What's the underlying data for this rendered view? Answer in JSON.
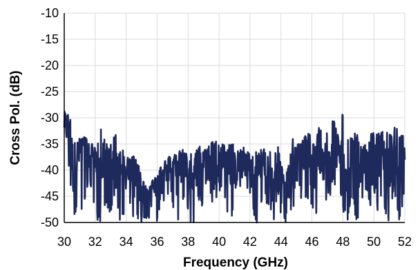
{
  "chart_data": {
    "type": "line",
    "title": "",
    "xlabel": "Frequency  (GHz)",
    "ylabel": "Cross Pol. (dB)",
    "xlim": [
      30,
      52
    ],
    "ylim": [
      -50,
      -10
    ],
    "xticks": [
      30,
      32,
      34,
      36,
      38,
      40,
      42,
      44,
      46,
      48,
      50,
      52
    ],
    "yticks": [
      -10,
      -15,
      -20,
      -25,
      -30,
      -35,
      -40,
      -45,
      -50
    ],
    "grid": true,
    "legend": "none",
    "series": [
      {
        "color": "#1f2a5c",
        "x": [
          30.0,
          30.3,
          30.6,
          30.9,
          31.2,
          31.5,
          31.8,
          32.1,
          32.4,
          32.7,
          33.0,
          33.3,
          33.6,
          33.9,
          34.2,
          34.5,
          34.8,
          35.1,
          35.4,
          35.7,
          36.0,
          36.3,
          36.6,
          36.9,
          37.2,
          37.5,
          37.8,
          38.1,
          38.4,
          38.7,
          39.0,
          39.3,
          39.6,
          39.9,
          40.2,
          40.5,
          40.8,
          41.1,
          41.4,
          41.7,
          42.0,
          42.3,
          42.6,
          42.9,
          43.2,
          43.5,
          43.8,
          44.1,
          44.4,
          44.7,
          45.0,
          45.3,
          45.6,
          45.9,
          46.2,
          46.5,
          46.8,
          47.1,
          47.4,
          47.7,
          48.0,
          48.3,
          48.6,
          48.9,
          49.2,
          49.5,
          49.8,
          50.1,
          50.4,
          50.7,
          51.0,
          51.3,
          51.6,
          51.9,
          52.0
        ],
        "y": [
          -31,
          -33,
          -40,
          -37,
          -35,
          -38,
          -36,
          -39,
          -40,
          -38,
          -41,
          -37,
          -40,
          -42,
          -39,
          -42,
          -43,
          -44,
          -44,
          -42,
          -43,
          -40,
          -40,
          -39,
          -41,
          -40,
          -38,
          -42,
          -41,
          -37,
          -40,
          -39,
          -42,
          -40,
          -38,
          -39,
          -41,
          -40,
          -38,
          -41,
          -39,
          -42,
          -40,
          -38,
          -41,
          -43,
          -42,
          -44,
          -43,
          -40,
          -39,
          -41,
          -38,
          -39,
          -40,
          -37,
          -38,
          -39,
          -37,
          -36,
          -38,
          -39,
          -37,
          -40,
          -38,
          -37,
          -39,
          -40,
          -37,
          -38,
          -39,
          -36,
          -40,
          -38,
          -37
        ],
        "max": [
          -27.5,
          -29,
          -32,
          -34,
          -34,
          -33,
          -35,
          -36,
          -31,
          -35,
          -35,
          -33,
          -36,
          -36,
          -38,
          -37,
          -39,
          -42,
          -44,
          -42,
          -41,
          -39,
          -38,
          -37,
          -37,
          -36,
          -36,
          -37,
          -36,
          -35,
          -36,
          -35,
          -34.5,
          -34.5,
          -35,
          -35,
          -35,
          -35,
          -35,
          -36,
          -36,
          -36,
          -36,
          -36,
          -36,
          -37,
          -35,
          -40,
          -40,
          -33,
          -35,
          -35,
          -33,
          -33,
          -35,
          -31,
          -33,
          -31,
          -30,
          -32.5,
          -29,
          -33,
          -34,
          -32,
          -36,
          -35,
          -32,
          -33,
          -33,
          -30.5,
          -33,
          -30,
          -33,
          -33,
          -35
        ],
        "min": [
          -35,
          -40,
          -50,
          -46,
          -50,
          -43,
          -44,
          -50,
          -50,
          -48,
          -50,
          -44,
          -50,
          -48,
          -46,
          -50,
          -50,
          -50,
          -50,
          -47,
          -50,
          -46,
          -47,
          -45,
          -50,
          -50,
          -45,
          -50,
          -50,
          -46,
          -48,
          -46,
          -50,
          -46,
          -44,
          -48,
          -50,
          -47,
          -44,
          -50,
          -46,
          -50,
          -50,
          -45,
          -48,
          -50,
          -50,
          -50,
          -50,
          -48,
          -49,
          -50,
          -46,
          -48,
          -50,
          -44,
          -47,
          -46,
          -43,
          -44,
          -48,
          -50,
          -46,
          -50,
          -48,
          -44,
          -47,
          -50,
          -45,
          -48,
          -50,
          -43,
          -50,
          -48,
          -42
        ]
      }
    ]
  }
}
